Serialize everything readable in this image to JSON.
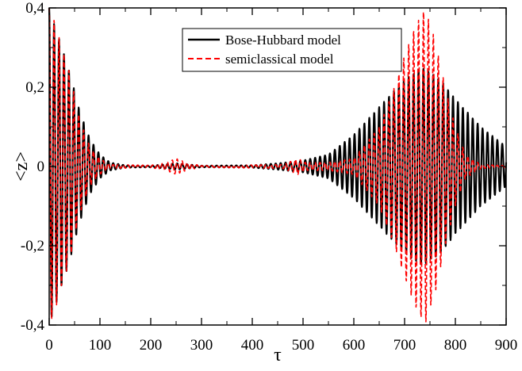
{
  "chart_data": {
    "type": "line",
    "xlabel": "τ",
    "ylabel": "<z>",
    "xlim": [
      0,
      900
    ],
    "ylim": [
      -0.4,
      0.4
    ],
    "xticks": [
      0,
      100,
      200,
      300,
      400,
      500,
      600,
      700,
      800,
      900
    ],
    "yticks": [
      -0.4,
      -0.2,
      0,
      0.2,
      0.4
    ],
    "xtick_labels": [
      "0",
      "100",
      "200",
      "300",
      "400",
      "500",
      "600",
      "700",
      "800",
      "900"
    ],
    "ytick_labels": [
      "-0,4",
      "-0,2",
      "0",
      "0,2",
      "0,4"
    ],
    "grid": false,
    "legend_position": "top-right",
    "series": [
      {
        "name": "Bose-Hubbard model",
        "color": "#000000",
        "style": "solid",
        "oscillation_period": 9.7,
        "envelope": [
          [
            0,
            0.4
          ],
          [
            10,
            0.36
          ],
          [
            25,
            0.3
          ],
          [
            40,
            0.24
          ],
          [
            60,
            0.14
          ],
          [
            80,
            0.07
          ],
          [
            100,
            0.03
          ],
          [
            120,
            0.01
          ],
          [
            150,
            0.003
          ],
          [
            200,
            0.002
          ],
          [
            250,
            0.008
          ],
          [
            300,
            0.002
          ],
          [
            400,
            0.003
          ],
          [
            450,
            0.008
          ],
          [
            500,
            0.015
          ],
          [
            550,
            0.03
          ],
          [
            600,
            0.08
          ],
          [
            650,
            0.15
          ],
          [
            700,
            0.22
          ],
          [
            735,
            0.25
          ],
          [
            770,
            0.22
          ],
          [
            800,
            0.17
          ],
          [
            850,
            0.1
          ],
          [
            900,
            0.05
          ]
        ]
      },
      {
        "name": "semiclassical model",
        "color": "#ff0000",
        "style": "dashed",
        "oscillation_period": 9.7,
        "envelope": [
          [
            0,
            0.4
          ],
          [
            10,
            0.37
          ],
          [
            25,
            0.3
          ],
          [
            40,
            0.24
          ],
          [
            60,
            0.12
          ],
          [
            80,
            0.05
          ],
          [
            100,
            0.02
          ],
          [
            120,
            0.005
          ],
          [
            200,
            0.003
          ],
          [
            230,
            0.01
          ],
          [
            250,
            0.02
          ],
          [
            270,
            0.01
          ],
          [
            300,
            0.002
          ],
          [
            460,
            0.005
          ],
          [
            480,
            0.015
          ],
          [
            490,
            0.02
          ],
          [
            505,
            0.01
          ],
          [
            550,
            0.01
          ],
          [
            600,
            0.02
          ],
          [
            650,
            0.1
          ],
          [
            680,
            0.2
          ],
          [
            700,
            0.28
          ],
          [
            720,
            0.35
          ],
          [
            740,
            0.4
          ],
          [
            760,
            0.32
          ],
          [
            780,
            0.2
          ],
          [
            800,
            0.1
          ],
          [
            820,
            0.03
          ],
          [
            850,
            0.005
          ],
          [
            900,
            0.002
          ]
        ]
      }
    ]
  }
}
